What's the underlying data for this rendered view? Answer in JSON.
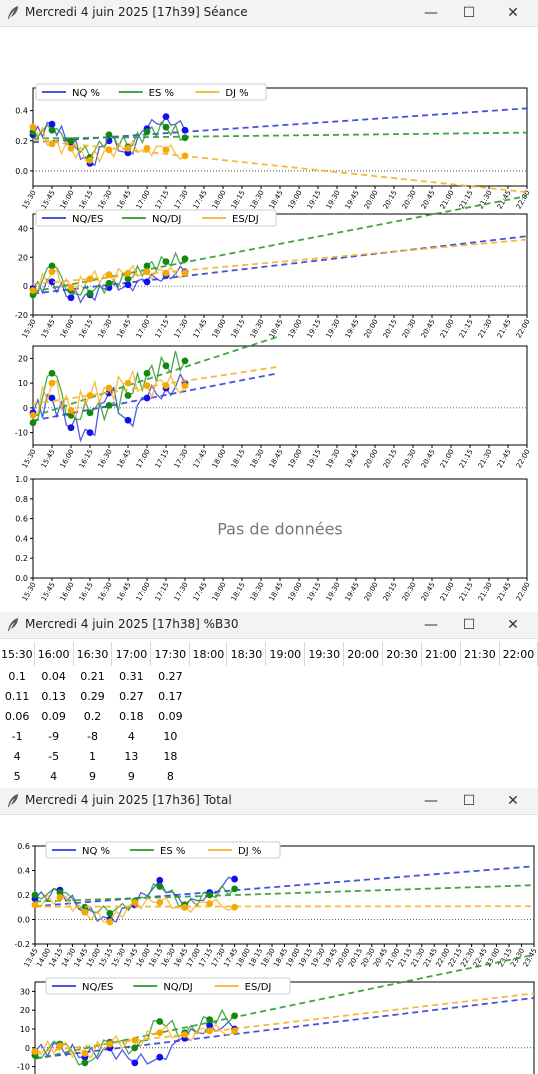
{
  "windows": {
    "seance": {
      "title": "Mercredi 4 juin 2025 [17h39] Séance"
    },
    "b30": {
      "title": "Mercredi 4 juin 2025 [17h38] %B30"
    },
    "total": {
      "title": "Mercredi 4 juin 2025 [17h36] Total"
    }
  },
  "controls": {
    "minimize": "—",
    "maximize": "☐",
    "close": "✕"
  },
  "colors": {
    "nq": "#2f3fdc",
    "es": "#2e9a2e",
    "dj": "#f5b324",
    "nq_dot": "#1010ee",
    "es_dot": "#118811",
    "dj_dot": "#f5a800"
  },
  "seance_time_ticks": [
    "15:30",
    "15:45",
    "16:00",
    "16:15",
    "16:30",
    "16:45",
    "17:00",
    "17:15",
    "17:30",
    "17:45",
    "18:00",
    "18:15",
    "18:30",
    "18:45",
    "19:00",
    "19:15",
    "19:30",
    "19:45",
    "20:00",
    "20:15",
    "20:30",
    "20:45",
    "21:00",
    "21:15",
    "21:30",
    "21:45",
    "22:00"
  ],
  "total_time_ticks": [
    "13:45",
    "14:00",
    "14:15",
    "14:30",
    "14:45",
    "15:00",
    "15:15",
    "15:30",
    "15:45",
    "16:00",
    "16:15",
    "16:30",
    "16:45",
    "17:00",
    "17:15",
    "17:30",
    "17:45",
    "18:00",
    "18:15",
    "18:30",
    "18:45",
    "19:00",
    "19:15",
    "19:30",
    "19:45",
    "20:00",
    "20:15",
    "20:30",
    "20:45",
    "21:00",
    "21:15",
    "21:30",
    "21:45",
    "22:00",
    "22:15",
    "22:30",
    "22:45",
    "23:00",
    "23:15",
    "23:30",
    "23:45"
  ],
  "chart_data": [
    {
      "type": "line",
      "panel": "seance-pct",
      "legend": [
        "NQ %",
        "ES %",
        "DJ %"
      ],
      "ylim": [
        -0.1,
        0.55
      ],
      "yticks": [
        "0.4",
        "0.2",
        "0.0"
      ],
      "series": [
        {
          "name": "NQ %",
          "x": [
            "15:30",
            "15:45",
            "16:00",
            "16:15",
            "16:30",
            "16:45",
            "17:00",
            "17:15",
            "17:30"
          ],
          "values": [
            0.24,
            0.31,
            0.19,
            0.05,
            0.2,
            0.12,
            0.28,
            0.36,
            0.27
          ]
        },
        {
          "name": "ES %",
          "x": [
            "15:30",
            "15:45",
            "16:00",
            "16:15",
            "16:30",
            "16:45",
            "17:00",
            "17:15",
            "17:30"
          ],
          "values": [
            0.26,
            0.27,
            0.2,
            0.09,
            0.24,
            0.16,
            0.26,
            0.29,
            0.22
          ]
        },
        {
          "name": "DJ %",
          "x": [
            "15:30",
            "15:45",
            "16:00",
            "16:15",
            "16:30",
            "16:45",
            "17:00",
            "17:15",
            "17:30"
          ],
          "values": [
            0.29,
            0.18,
            0.15,
            0.07,
            0.14,
            0.15,
            0.15,
            0.14,
            0.1
          ]
        }
      ]
    },
    {
      "type": "line",
      "panel": "seance-spread-full",
      "legend": [
        "NQ/ES",
        "NQ/DJ",
        "ES/DJ"
      ],
      "ylim": [
        -20,
        50
      ],
      "yticks": [
        "40",
        "20",
        "0",
        "-20"
      ],
      "series": [
        {
          "name": "NQ/ES",
          "values": [
            -2,
            3,
            -8,
            -6,
            -1,
            1,
            3,
            8,
            10
          ]
        },
        {
          "name": "NQ/DJ",
          "values": [
            -6,
            14,
            -3,
            -5,
            2,
            5,
            14,
            17,
            19
          ]
        },
        {
          "name": "ES/DJ",
          "values": [
            -3,
            10,
            -1,
            5,
            8,
            9,
            10,
            9,
            9
          ]
        }
      ]
    },
    {
      "type": "line",
      "panel": "seance-spread-zoom",
      "ylim": [
        -15,
        25
      ],
      "yticks": [
        "20",
        "10",
        "0",
        "-10"
      ],
      "series": [
        {
          "name": "NQ/ES",
          "values": [
            -2,
            4,
            -8,
            -10,
            6,
            -5,
            4,
            8,
            10
          ]
        },
        {
          "name": "NQ/DJ",
          "values": [
            -6,
            14,
            -3,
            -2,
            1,
            5,
            14,
            17,
            19
          ]
        },
        {
          "name": "ES/DJ",
          "values": [
            -3,
            10,
            -1,
            5,
            8,
            10,
            9,
            9,
            9
          ]
        }
      ]
    },
    {
      "type": "line",
      "panel": "seance-empty",
      "ylim": [
        0,
        1
      ],
      "yticks": [
        "1.0",
        "0.8",
        "0.6",
        "0.4",
        "0.2",
        "0.0"
      ],
      "message": "Pas de données",
      "series": []
    },
    {
      "type": "line",
      "panel": "total-pct",
      "legend": [
        "NQ %",
        "ES %",
        "DJ %"
      ],
      "ylim": [
        -0.2,
        0.6
      ],
      "yticks": [
        "0.6",
        "0.4",
        "0.2",
        "0.0",
        "-0.2"
      ],
      "series": [
        {
          "name": "NQ %",
          "values": [
            0.17,
            0.24,
            0.06,
            0.0,
            0.12,
            0.32,
            0.1,
            0.22,
            0.33
          ]
        },
        {
          "name": "ES %",
          "values": [
            0.2,
            0.22,
            0.1,
            0.05,
            0.15,
            0.27,
            0.12,
            0.2,
            0.25
          ]
        },
        {
          "name": "DJ %",
          "values": [
            0.12,
            0.18,
            0.06,
            -0.02,
            0.14,
            0.14,
            0.1,
            0.13,
            0.1
          ]
        }
      ]
    },
    {
      "type": "line",
      "panel": "total-spread",
      "legend": [
        "NQ/ES",
        "NQ/DJ",
        "ES/DJ"
      ],
      "ylim": [
        -15,
        35
      ],
      "yticks": [
        "30",
        "20",
        "10",
        "0",
        "-10"
      ],
      "series": [
        {
          "name": "NQ/ES",
          "values": [
            -2,
            1,
            -5,
            0,
            -8,
            -5,
            5,
            12,
            10
          ]
        },
        {
          "name": "NQ/DJ",
          "values": [
            -4,
            2,
            -8,
            3,
            0,
            14,
            8,
            15,
            17
          ]
        },
        {
          "name": "ES/DJ",
          "values": [
            -2,
            1,
            -3,
            2,
            4,
            8,
            7,
            9,
            9
          ]
        }
      ]
    }
  ],
  "b30": {
    "headers": [
      "15:30",
      "16:00",
      "16:30",
      "17:00",
      "17:30",
      "18:00",
      "18:30",
      "19:00",
      "19:30",
      "20:00",
      "20:30",
      "21:00",
      "21:30",
      "22:00"
    ],
    "rows": [
      [
        "0.1",
        "0.04",
        "0.21",
        "0.31",
        "0.27"
      ],
      [
        "0.11",
        "0.13",
        "0.29",
        "0.27",
        "0.17"
      ],
      [
        "0.06",
        "0.09",
        "0.2",
        "0.18",
        "0.09"
      ],
      [
        "-1",
        "-9",
        "-8",
        "4",
        "10"
      ],
      [
        "4",
        "-5",
        "1",
        "13",
        "18"
      ],
      [
        "5",
        "4",
        "9",
        "9",
        "8"
      ]
    ]
  }
}
